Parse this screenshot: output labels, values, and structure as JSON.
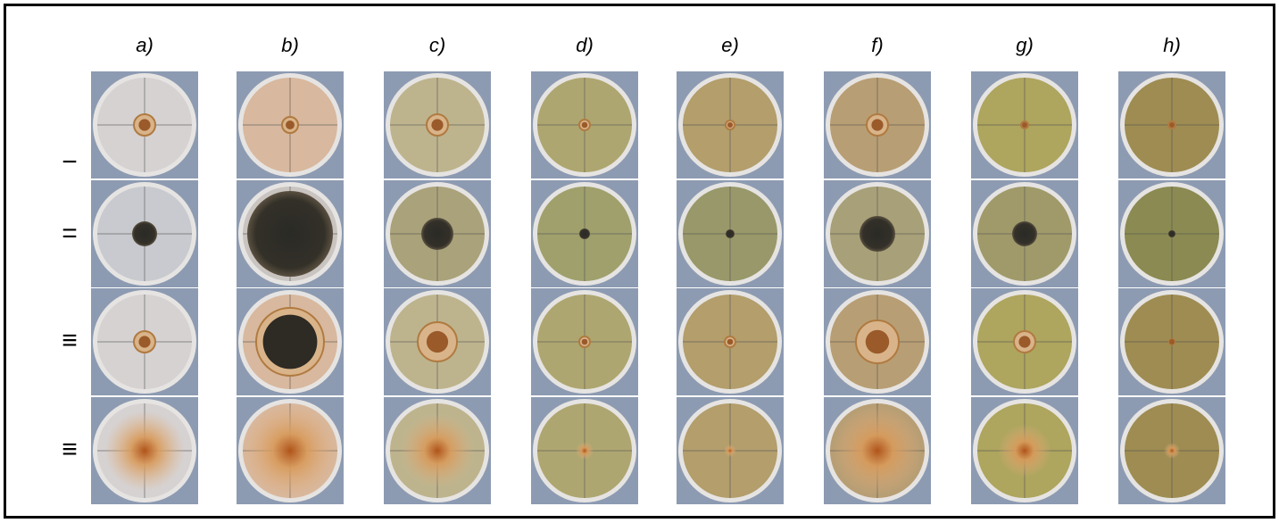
{
  "columns": [
    "a)",
    "b)",
    "c)",
    "d)",
    "e)",
    "f)",
    "g)",
    "h)"
  ],
  "rows": [
    "−",
    "=",
    "≡",
    "≡"
  ]
}
